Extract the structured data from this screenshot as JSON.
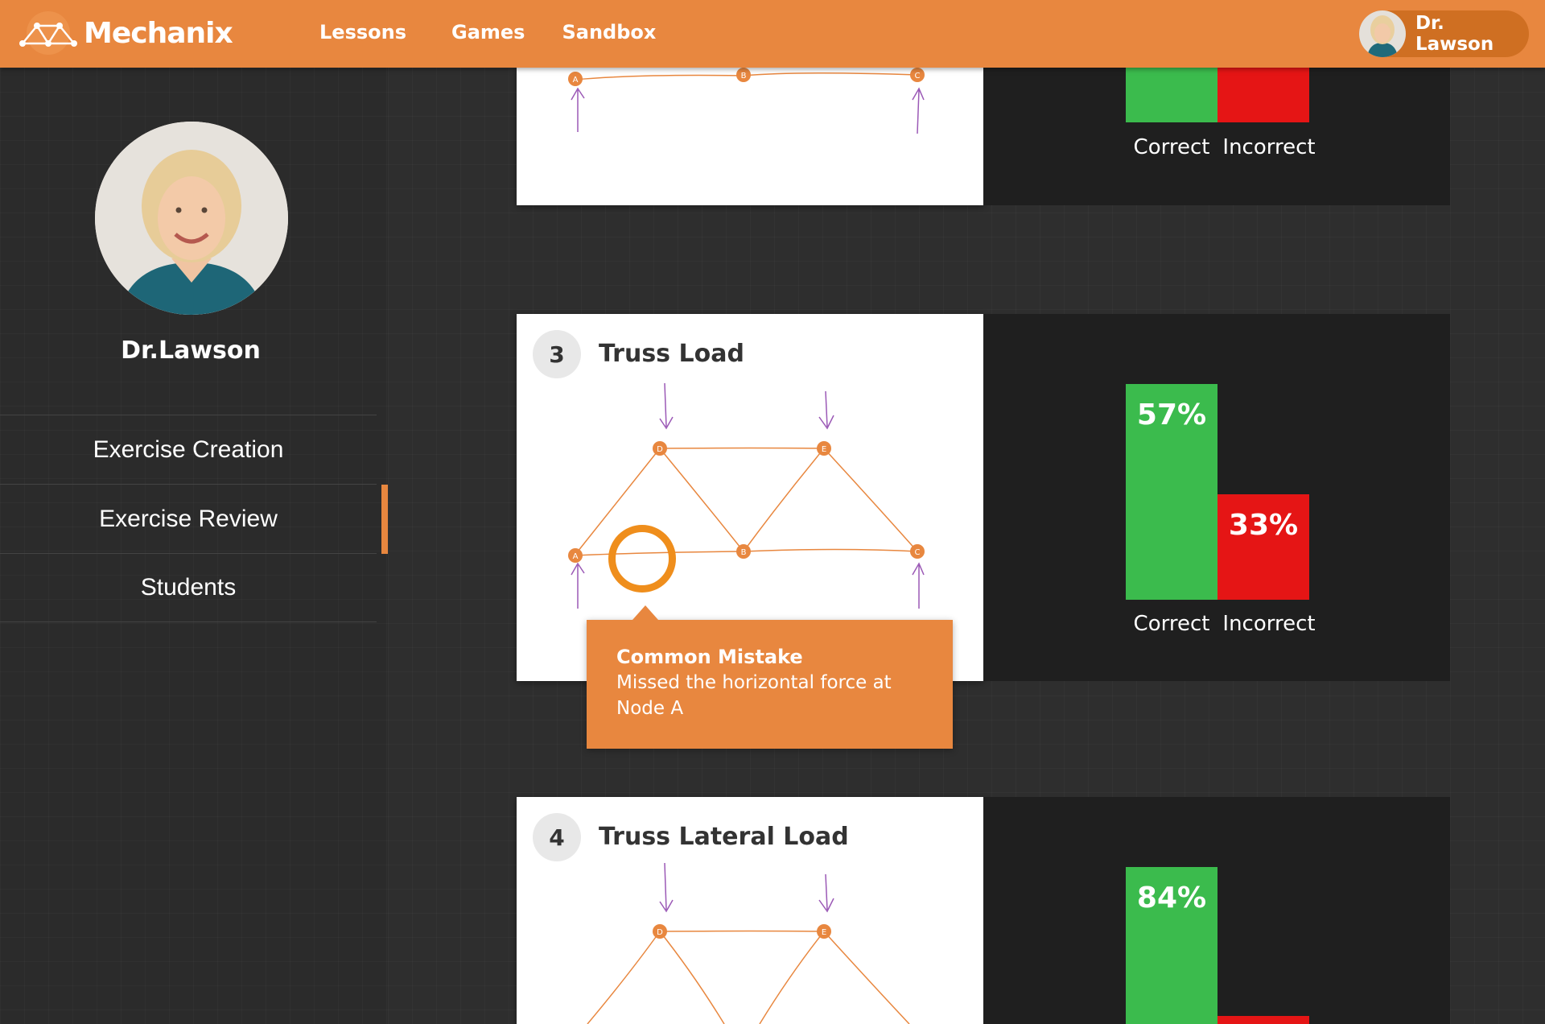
{
  "app": {
    "name": "Mechanix"
  },
  "nav": {
    "items": [
      "Lessons",
      "Games",
      "Sandbox"
    ]
  },
  "user": {
    "name": "Dr. Lawson"
  },
  "profile": {
    "name": "Dr.Lawson"
  },
  "sidebar": {
    "items": [
      {
        "label": "Exercise Creation",
        "active": false
      },
      {
        "label": "Exercise Review",
        "active": true
      },
      {
        "label": "Students",
        "active": false
      }
    ]
  },
  "exercises": [
    {
      "number": "",
      "title": "",
      "nodes": [
        "A",
        "B",
        "C"
      ],
      "correct_label": "Correct",
      "incorrect_label": "Incorrect"
    },
    {
      "number": "3",
      "title": "Truss Load",
      "nodes": [
        "A",
        "B",
        "C",
        "D",
        "E"
      ],
      "correct_pct": "57%",
      "incorrect_pct": "33%",
      "correct_label": "Correct",
      "incorrect_label": "Incorrect",
      "correct_value": 57,
      "incorrect_value": 33
    },
    {
      "number": "4",
      "title": "Truss Lateral Load",
      "nodes": [
        "D",
        "E"
      ],
      "correct_pct": "84%",
      "correct_value": 84
    }
  ],
  "callout": {
    "title": "Common Mistake",
    "text": "Missed the horizontal force at Node A"
  },
  "colors": {
    "accent": "#e8873f",
    "correct": "#3bbb4d",
    "incorrect": "#e51515",
    "truss_line": "#e8873f",
    "force_arrow": "#9b59b6"
  }
}
